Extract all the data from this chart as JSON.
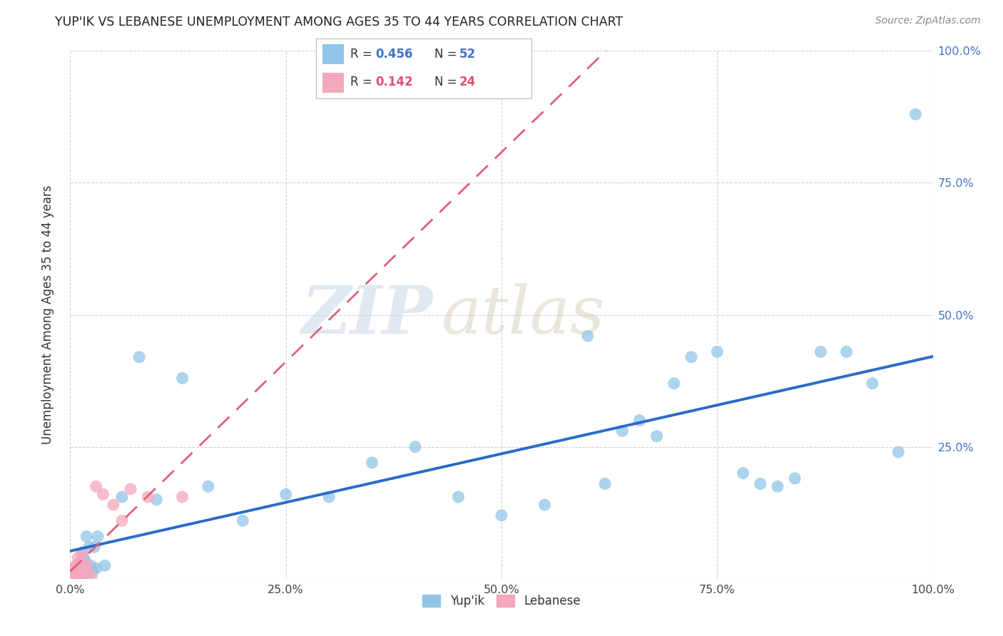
{
  "title": "YUP'IK VS LEBANESE UNEMPLOYMENT AMONG AGES 35 TO 44 YEARS CORRELATION CHART",
  "source": "Source: ZipAtlas.com",
  "ylabel": "Unemployment Among Ages 35 to 44 years",
  "xlim": [
    0,
    1.0
  ],
  "ylim": [
    0,
    1.0
  ],
  "xticks": [
    0.0,
    0.25,
    0.5,
    0.75,
    1.0
  ],
  "yticks": [
    0.0,
    0.25,
    0.5,
    0.75,
    1.0
  ],
  "xticklabels": [
    "0.0%",
    "25.0%",
    "50.0%",
    "75.0%",
    "100.0%"
  ],
  "right_yticklabels": [
    "",
    "25.0%",
    "50.0%",
    "75.0%",
    "100.0%"
  ],
  "background_color": "#ffffff",
  "watermark_zip": "ZIP",
  "watermark_atlas": "atlas",
  "legend_R_yupik": "0.456",
  "legend_N_yupik": "52",
  "legend_R_lebanese": "0.142",
  "legend_N_lebanese": "24",
  "legend_label_yupik": "Yup'ik",
  "legend_label_lebanese": "Lebanese",
  "yupik_color": "#92C5E8",
  "lebanese_color": "#F4A8BC",
  "trendline_yupik_color": "#2B6BC9",
  "trendline_lebanese_color": "#E0607A",
  "legend_value_color_blue": "#4472C4",
  "legend_value_color_pink": "#E05070",
  "yupik_x": [
    0.003,
    0.005,
    0.007,
    0.009,
    0.01,
    0.011,
    0.012,
    0.013,
    0.014,
    0.015,
    0.016,
    0.017,
    0.018,
    0.019,
    0.02,
    0.022,
    0.024,
    0.026,
    0.028,
    0.03,
    0.032,
    0.04,
    0.06,
    0.08,
    0.1,
    0.13,
    0.16,
    0.2,
    0.25,
    0.3,
    0.35,
    0.4,
    0.45,
    0.5,
    0.55,
    0.6,
    0.62,
    0.64,
    0.66,
    0.68,
    0.7,
    0.72,
    0.75,
    0.78,
    0.8,
    0.82,
    0.84,
    0.87,
    0.9,
    0.93,
    0.96,
    0.98
  ],
  "yupik_y": [
    0.02,
    0.015,
    0.01,
    0.025,
    0.005,
    0.03,
    0.02,
    0.01,
    0.05,
    0.04,
    0.015,
    0.035,
    0.02,
    0.08,
    0.005,
    0.06,
    0.025,
    0.015,
    0.06,
    0.02,
    0.08,
    0.025,
    0.155,
    0.42,
    0.15,
    0.38,
    0.175,
    0.11,
    0.16,
    0.155,
    0.22,
    0.25,
    0.155,
    0.12,
    0.14,
    0.46,
    0.18,
    0.28,
    0.3,
    0.27,
    0.37,
    0.42,
    0.43,
    0.2,
    0.18,
    0.175,
    0.19,
    0.43,
    0.43,
    0.37,
    0.24,
    0.88
  ],
  "lebanese_x": [
    0.002,
    0.003,
    0.004,
    0.005,
    0.006,
    0.007,
    0.008,
    0.009,
    0.01,
    0.011,
    0.012,
    0.013,
    0.014,
    0.016,
    0.018,
    0.02,
    0.025,
    0.03,
    0.038,
    0.05,
    0.06,
    0.07,
    0.09,
    0.13
  ],
  "lebanese_y": [
    0.01,
    0.02,
    0.015,
    0.005,
    0.02,
    0.025,
    0.005,
    0.04,
    0.03,
    0.02,
    0.01,
    0.005,
    0.045,
    0.015,
    0.01,
    0.025,
    0.005,
    0.175,
    0.16,
    0.14,
    0.11,
    0.17,
    0.155,
    0.155
  ]
}
